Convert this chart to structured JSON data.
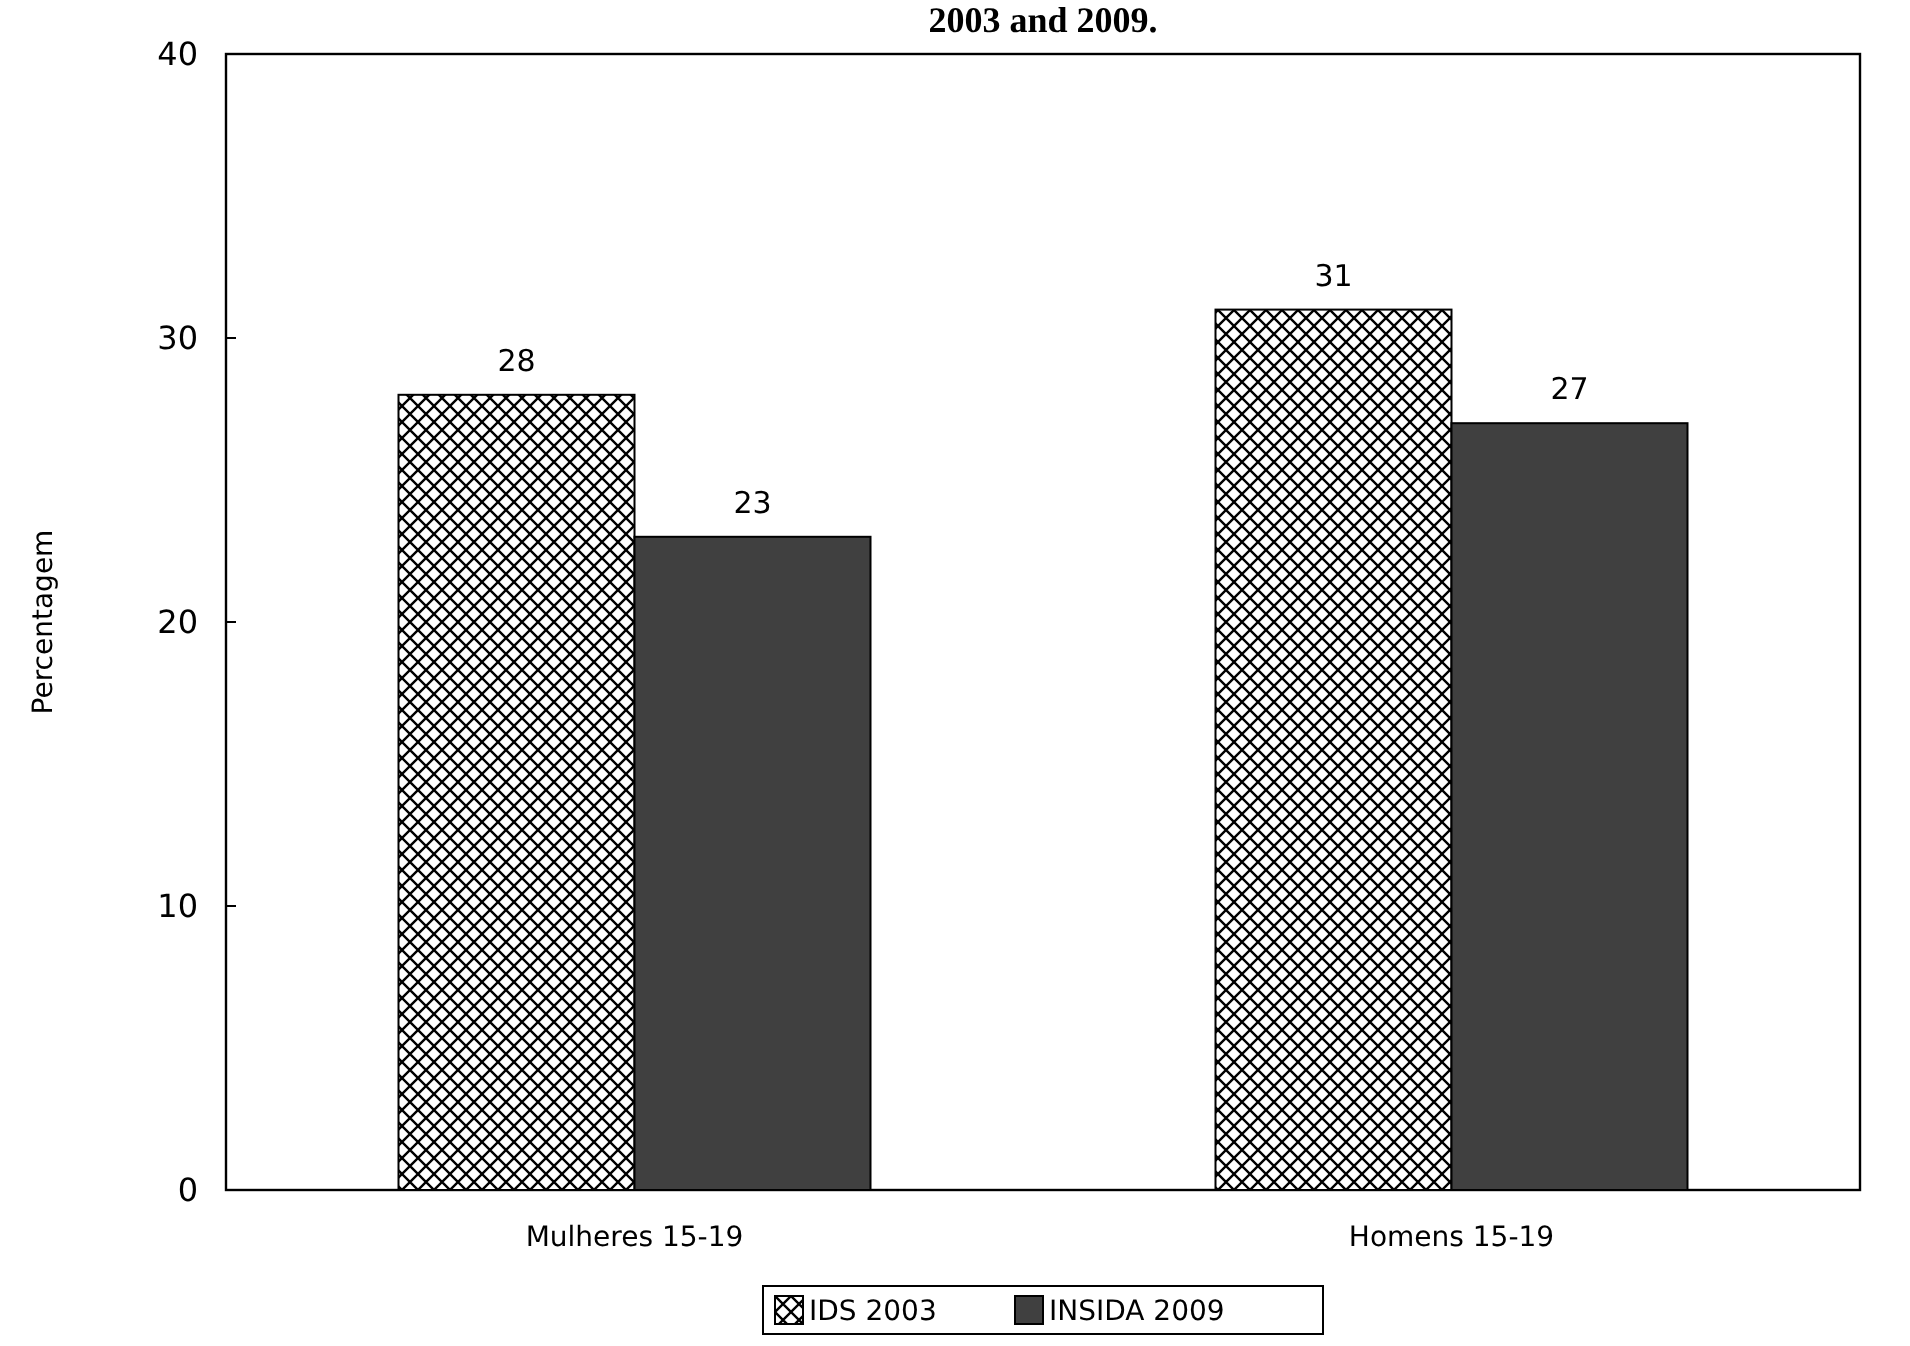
{
  "chart_data": {
    "type": "bar",
    "title": "2003 and 2009.",
    "ylabel": "Percentagem",
    "categories": [
      "Mulheres 15-19",
      "Homens 15-19"
    ],
    "series": [
      {
        "name": "IDS 2003",
        "color": "#000000",
        "values": [
          28,
          31
        ]
      },
      {
        "name": "INSIDA 2009",
        "color": "#404040",
        "values": [
          23,
          27
        ]
      }
    ],
    "ylim": [
      0,
      40
    ],
    "yticks": [
      0,
      10,
      20,
      30,
      40
    ],
    "data_labels": true,
    "legend": "bottom",
    "grid": false
  }
}
